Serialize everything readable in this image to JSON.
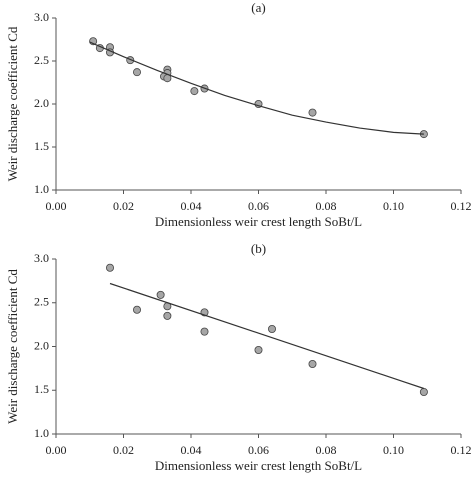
{
  "chart_data": [
    {
      "type": "scatter",
      "title": "(a)",
      "xlabel": "Dimensionless weir crest length SoBt/L",
      "ylabel": "Weir discharge coefficient Cd",
      "xlim": [
        0,
        0.12
      ],
      "xticks": [
        {
          "value": 0,
          "label": "0.00"
        },
        {
          "value": 0.02,
          "label": "0.02"
        },
        {
          "value": 0.04,
          "label": "0.04"
        },
        {
          "value": 0.06,
          "label": "0.06"
        },
        {
          "value": 0.08,
          "label": "0.08"
        },
        {
          "value": 0.1,
          "label": "0.10"
        },
        {
          "value": 0.12,
          "label": "0.12"
        }
      ],
      "ylim": [
        1,
        3
      ],
      "yticks": [
        {
          "value": 1,
          "label": "1.0"
        },
        1.5,
        {
          "value": 2,
          "label": "2.0"
        },
        2.5,
        {
          "value": 3,
          "label": "3.0"
        }
      ],
      "series": [
        {
          "type": "scatter",
          "color": "#a6a6a6",
          "x": [
            0.011,
            0.013,
            0.016,
            0.016,
            0.022,
            0.024,
            0.033,
            0.033,
            0.032,
            0.033,
            0.041,
            0.044,
            0.06,
            0.076,
            0.109
          ],
          "values": [
            2.73,
            2.65,
            2.66,
            2.6,
            2.51,
            2.37,
            2.4,
            2.36,
            2.32,
            2.3,
            2.15,
            2.18,
            2.0,
            1.9,
            1.65
          ]
        },
        {
          "type": "line",
          "color": "#333333",
          "x": [
            0.01,
            0.02,
            0.03,
            0.04,
            0.05,
            0.06,
            0.07,
            0.08,
            0.09,
            0.1,
            0.109
          ],
          "values": [
            2.72,
            2.55,
            2.39,
            2.24,
            2.1,
            1.98,
            1.87,
            1.79,
            1.72,
            1.67,
            1.65
          ]
        }
      ]
    },
    {
      "type": "scatter",
      "title": "(b)",
      "xlabel": "Dimensionless weir crest length SoBt/L",
      "ylabel": "Weir discharge coefficient Cd",
      "xlim": [
        0,
        0.12
      ],
      "xticks": [
        {
          "value": 0,
          "label": "0.00"
        },
        {
          "value": 0.02,
          "label": "0.02"
        },
        {
          "value": 0.04,
          "label": "0.04"
        },
        {
          "value": 0.06,
          "label": "0.06"
        },
        {
          "value": 0.08,
          "label": "0.08"
        },
        {
          "value": 0.1,
          "label": "0.10"
        },
        {
          "value": 0.12,
          "label": "0.12"
        }
      ],
      "ylim": [
        1,
        3
      ],
      "yticks": [
        {
          "value": 1,
          "label": "1.0"
        },
        1.5,
        {
          "value": 2,
          "label": "2.0"
        },
        2.5,
        {
          "value": 3,
          "label": "3.0"
        }
      ],
      "series": [
        {
          "type": "scatter",
          "color": "#a6a6a6",
          "x": [
            0.016,
            0.024,
            0.031,
            0.033,
            0.033,
            0.044,
            0.044,
            0.06,
            0.064,
            0.076,
            0.109
          ],
          "values": [
            2.9,
            2.42,
            2.59,
            2.46,
            2.35,
            2.39,
            2.17,
            1.96,
            2.2,
            1.8,
            1.48
          ]
        },
        {
          "type": "line",
          "color": "#333333",
          "x": [
            0.016,
            0.109
          ],
          "values": [
            2.72,
            1.52
          ]
        }
      ]
    }
  ]
}
